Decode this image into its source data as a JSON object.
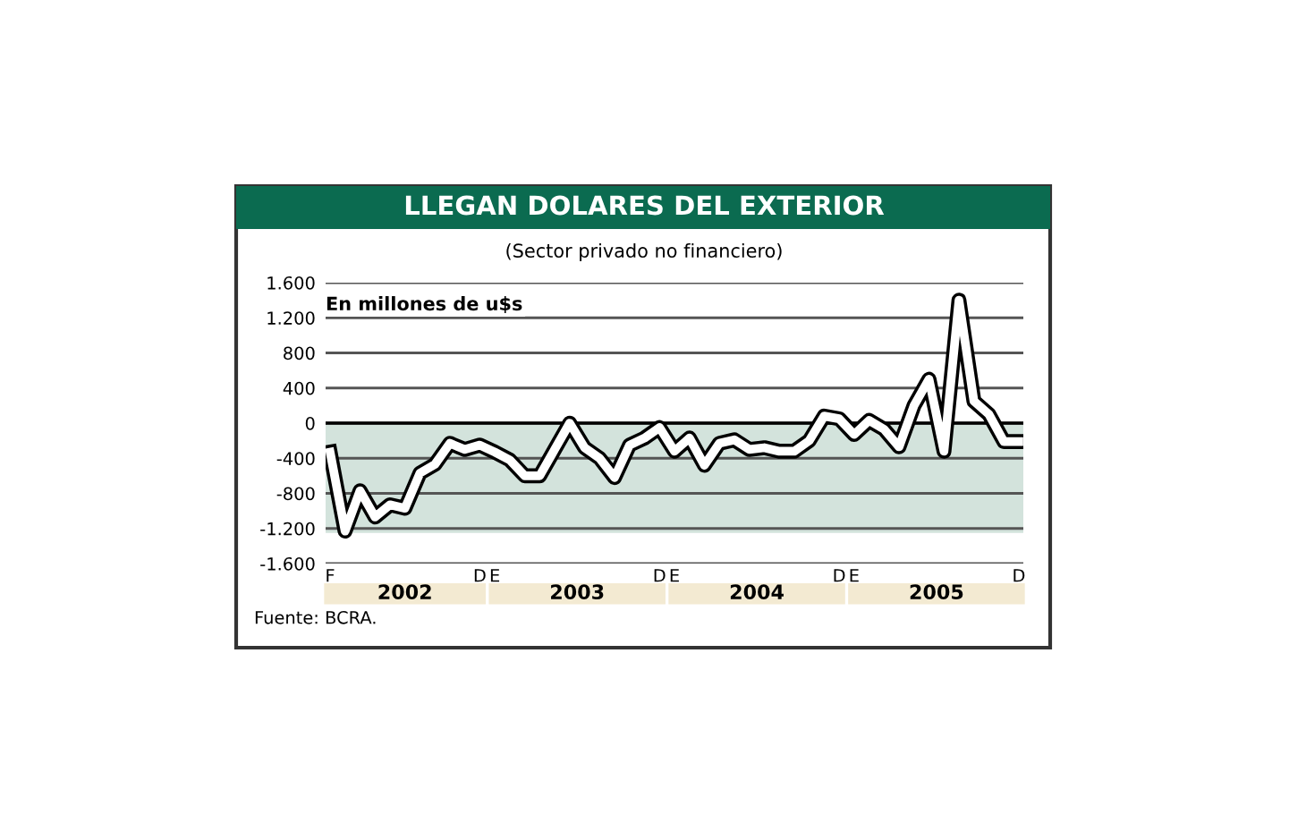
{
  "chart_data": {
    "type": "line",
    "title": "LLEGAN DOLARES DEL EXTERIOR",
    "subtitle": "(Sector privado no financiero)",
    "ylabel": "En millones de u$s",
    "annotations": [
      "2002",
      "2003",
      "2004",
      "2005",
      "Fuente: BCRA."
    ],
    "categories": [
      "F",
      null,
      null,
      null,
      null,
      null,
      null,
      null,
      null,
      null,
      "D",
      "E",
      null,
      null,
      null,
      null,
      null,
      null,
      null,
      null,
      null,
      null,
      "D",
      "E",
      null,
      null,
      null,
      null,
      null,
      null,
      null,
      null,
      null,
      null,
      "D",
      "E",
      null,
      null,
      null,
      null,
      null,
      null,
      null,
      null,
      null,
      null,
      "D"
    ],
    "series": [
      {
        "color": "#ffffff",
        "values": [
          -330,
          -1230,
          -770,
          -1070,
          -930,
          -970,
          -570,
          -470,
          -230,
          -300,
          -250,
          -330,
          -420,
          -600,
          -600,
          -300,
          0,
          -280,
          -400,
          -620,
          -250,
          -170,
          -50,
          -320,
          -170,
          -480,
          -230,
          -190,
          -300,
          -280,
          -320,
          -320,
          -200,
          80,
          50,
          -130,
          30,
          -70,
          -270,
          200,
          500,
          -320,
          1400,
          250,
          100,
          -210,
          -210
        ]
      }
    ],
    "ylim": [
      -1600,
      1600
    ],
    "yticks": [
      {
        "value": 1600,
        "label": "1.600"
      },
      {
        "value": 1200,
        "label": "1.200"
      },
      800,
      400,
      0,
      -400,
      -800,
      {
        "value": -1200,
        "label": "-1.200"
      },
      {
        "value": -1600,
        "label": "-1.600"
      }
    ],
    "bands": [
      {
        "axis": "y",
        "from": -1250,
        "to": 0,
        "color": "#d3e3dc"
      }
    ],
    "ref_lines": [
      {
        "axis": "y",
        "value": 0,
        "color": "#000000"
      }
    ],
    "grid": "y",
    "marker": "none",
    "line_style": "solid"
  }
}
